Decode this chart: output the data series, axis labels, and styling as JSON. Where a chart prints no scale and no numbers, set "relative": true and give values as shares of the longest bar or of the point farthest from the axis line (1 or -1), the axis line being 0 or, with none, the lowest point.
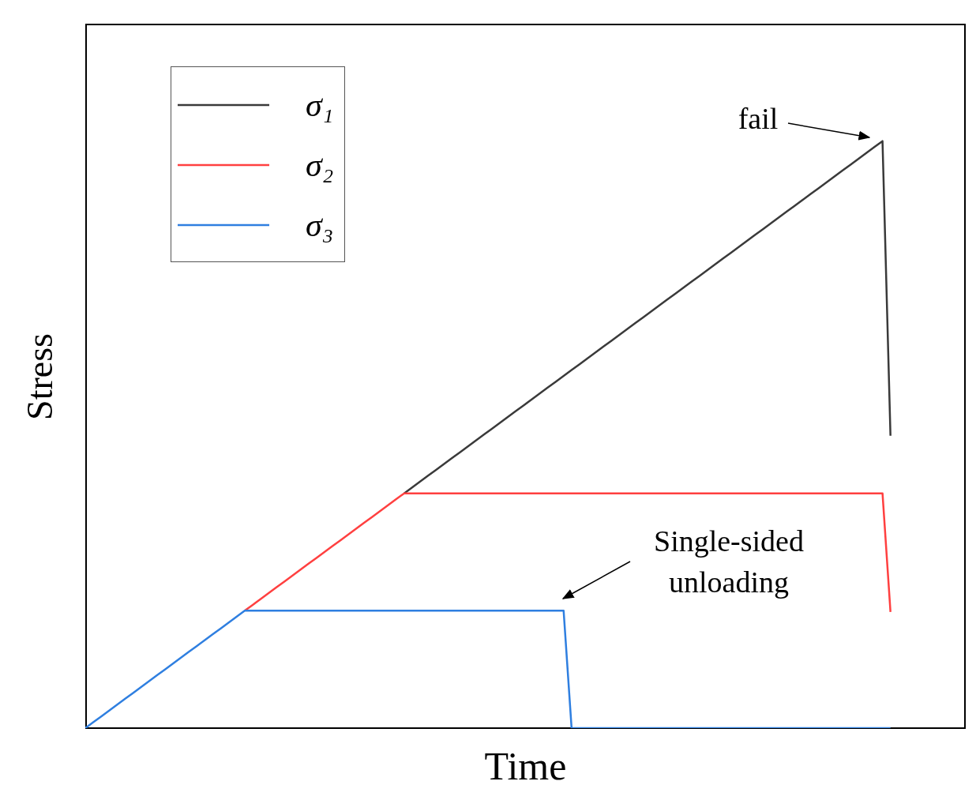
{
  "chart_data": {
    "type": "line",
    "relative": true,
    "xlabel": "Time",
    "ylabel": "Stress",
    "legend": "top left",
    "marker": "none",
    "line_style": "solid",
    "categories": [
      null,
      null,
      null,
      null,
      null,
      null,
      null,
      null,
      null,
      null,
      null,
      null,
      null,
      null,
      null,
      null,
      null,
      null,
      null,
      null,
      null,
      null,
      null,
      null,
      null,
      null,
      null,
      null,
      null,
      null,
      null,
      null,
      null,
      null,
      null,
      null,
      null,
      null,
      null,
      null,
      null,
      null,
      null,
      null,
      null,
      null,
      null,
      null,
      null,
      null,
      null,
      null,
      null,
      null,
      null,
      null,
      null,
      null,
      null,
      null,
      null,
      null,
      null,
      null,
      null,
      null,
      null,
      null,
      null,
      null,
      null,
      null,
      null,
      null,
      null,
      null,
      null,
      null,
      null,
      null,
      null,
      null,
      null,
      null,
      null,
      null,
      null,
      null,
      null,
      null,
      null,
      null,
      null,
      null,
      null,
      null,
      null,
      null,
      null,
      null,
      null,
      null,
      null,
      null,
      null,
      null,
      null,
      null,
      null,
      null,
      null
    ],
    "series": [
      {
        "name": "σ₁",
        "color": "#3a3a3a",
        "values": [
          null,
          null,
          null,
          null,
          null,
          null,
          null,
          null,
          null,
          null,
          null,
          null,
          null,
          null,
          null,
          null,
          null,
          null,
          null,
          null,
          null,
          null,
          null,
          null,
          null,
          null,
          null,
          null,
          null,
          null,
          null,
          null,
          null,
          null,
          null,
          null,
          null,
          null,
          null,
          null,
          0.4,
          0.41,
          0.42,
          0.43,
          0.44,
          0.45,
          0.46,
          0.47,
          0.48,
          0.49,
          0.5,
          0.51,
          0.52,
          0.53,
          0.54,
          0.55,
          0.56,
          0.57,
          0.58,
          0.59,
          0.6,
          0.61,
          0.62,
          0.63,
          0.64,
          0.65,
          0.66,
          0.67,
          0.68,
          0.69,
          0.7,
          0.71,
          0.72,
          0.73,
          0.74,
          0.75,
          0.76,
          0.77,
          0.78,
          0.79,
          0.8,
          0.81,
          0.82,
          0.83,
          0.84,
          0.85,
          0.86,
          0.87,
          0.88,
          0.89,
          0.9,
          0.91,
          0.92,
          0.93,
          0.94,
          0.95,
          0.96,
          0.97,
          0.98,
          0.99,
          1,
          0.498,
          null,
          null,
          null,
          null,
          null,
          null,
          null,
          null,
          null
        ]
      },
      {
        "name": "σ₂",
        "color": "#ff4040",
        "values": [
          null,
          null,
          null,
          null,
          null,
          null,
          null,
          null,
          null,
          null,
          null,
          null,
          null,
          null,
          null,
          null,
          null,
          null,
          null,
          null,
          0.2,
          0.21,
          0.22,
          0.23,
          0.24,
          0.25,
          0.26,
          0.27,
          0.28,
          0.29,
          0.3,
          0.31,
          0.32,
          0.33,
          0.34,
          0.35,
          0.36,
          0.37,
          0.38,
          0.39,
          0.4,
          0.4,
          0.4,
          0.4,
          0.4,
          0.4,
          0.4,
          0.4,
          0.4,
          0.4,
          0.4,
          0.4,
          0.4,
          0.4,
          0.4,
          0.4,
          0.4,
          0.4,
          0.4,
          0.4,
          0.4,
          0.4,
          0.4,
          0.4,
          0.4,
          0.4,
          0.4,
          0.4,
          0.4,
          0.4,
          0.4,
          0.4,
          0.4,
          0.4,
          0.4,
          0.4,
          0.4,
          0.4,
          0.4,
          0.4,
          0.4,
          0.4,
          0.4,
          0.4,
          0.4,
          0.4,
          0.4,
          0.4,
          0.4,
          0.4,
          0.4,
          0.4,
          0.4,
          0.4,
          0.4,
          0.4,
          0.4,
          0.4,
          0.4,
          0.4,
          0.4,
          0.198,
          null,
          null,
          null,
          null,
          null,
          null,
          null,
          null,
          null
        ]
      },
      {
        "name": "σ₃",
        "color": "#2f7fe0",
        "values": [
          0,
          0.01,
          0.02,
          0.03,
          0.04,
          0.05,
          0.06,
          0.07,
          0.08,
          0.09,
          0.1,
          0.11,
          0.12,
          0.13,
          0.14,
          0.15,
          0.16,
          0.17,
          0.18,
          0.19,
          0.2,
          0.2,
          0.2,
          0.2,
          0.2,
          0.2,
          0.2,
          0.2,
          0.2,
          0.2,
          0.2,
          0.2,
          0.2,
          0.2,
          0.2,
          0.2,
          0.2,
          0.2,
          0.2,
          0.2,
          0.2,
          0.2,
          0.2,
          0.2,
          0.2,
          0.2,
          0.2,
          0.2,
          0.2,
          0.2,
          0.2,
          0.2,
          0.2,
          0.2,
          0.2,
          0.2,
          0.2,
          0.2,
          0.2,
          0.2,
          0.2,
          0,
          0,
          0,
          0,
          0,
          0,
          0,
          0,
          0,
          0,
          0,
          0,
          0,
          0,
          0,
          0,
          0,
          0,
          0,
          0,
          0,
          0,
          0,
          0,
          0,
          0,
          0,
          0,
          0,
          0,
          0,
          0,
          0,
          0,
          0,
          0,
          0,
          0,
          0,
          0,
          0,
          null,
          null,
          null,
          null,
          null,
          null,
          null,
          null,
          null
        ]
      }
    ],
    "annotations": [
      "fail",
      "Single-sided unloading"
    ]
  }
}
